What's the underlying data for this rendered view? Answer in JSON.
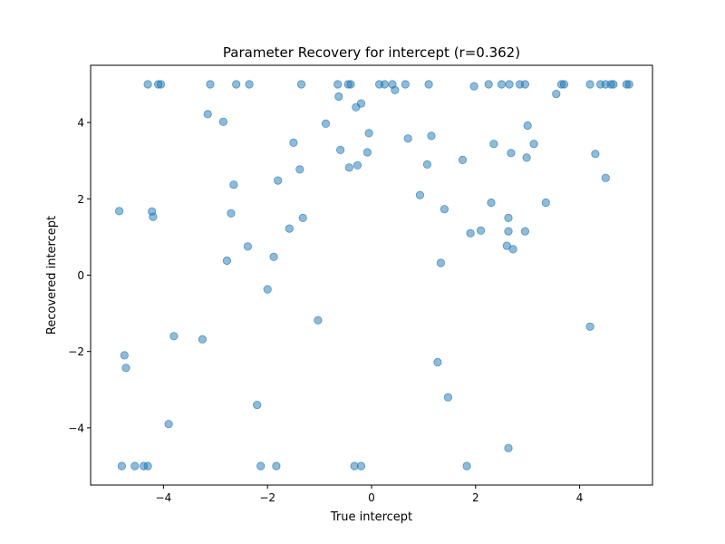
{
  "chart_data": {
    "type": "scatter",
    "title": "Parameter Recovery for intercept (r=0.362)",
    "xlabel": "True intercept",
    "ylabel": "Recovered intercept",
    "xlim": [
      -5.4,
      5.4
    ],
    "ylim": [
      -5.5,
      5.5
    ],
    "xticks": [
      -4,
      -2,
      0,
      2,
      4
    ],
    "yticks": [
      -4,
      -2,
      0,
      2,
      4
    ],
    "grid": false,
    "marker_color": "#1f77b4",
    "marker_alpha": 0.5,
    "points": [
      [
        -4.3,
        5.0
      ],
      [
        -4.1,
        5.0
      ],
      [
        -4.05,
        5.0
      ],
      [
        -3.1,
        5.0
      ],
      [
        -2.6,
        5.0
      ],
      [
        -2.35,
        5.0
      ],
      [
        -1.35,
        5.0
      ],
      [
        -0.65,
        5.0
      ],
      [
        -0.45,
        5.0
      ],
      [
        -0.4,
        5.0
      ],
      [
        0.15,
        5.0
      ],
      [
        0.25,
        5.0
      ],
      [
        0.4,
        5.0
      ],
      [
        0.65,
        5.0
      ],
      [
        1.1,
        5.0
      ],
      [
        2.25,
        5.0
      ],
      [
        2.5,
        5.0
      ],
      [
        2.65,
        5.0
      ],
      [
        2.85,
        5.0
      ],
      [
        2.95,
        5.0
      ],
      [
        3.65,
        5.0
      ],
      [
        3.7,
        5.0
      ],
      [
        4.2,
        5.0
      ],
      [
        4.4,
        5.0
      ],
      [
        4.5,
        5.0
      ],
      [
        4.6,
        5.0
      ],
      [
        4.65,
        5.0
      ],
      [
        4.9,
        5.0
      ],
      [
        4.95,
        5.0
      ],
      [
        1.97,
        4.95
      ],
      [
        0.45,
        4.85
      ],
      [
        3.55,
        4.75
      ],
      [
        -0.63,
        4.68
      ],
      [
        -0.2,
        4.5
      ],
      [
        -0.3,
        4.4
      ],
      [
        -3.15,
        4.22
      ],
      [
        -2.85,
        4.02
      ],
      [
        -0.88,
        3.97
      ],
      [
        3.0,
        3.92
      ],
      [
        -0.05,
        3.72
      ],
      [
        1.15,
        3.65
      ],
      [
        0.7,
        3.58
      ],
      [
        -1.5,
        3.47
      ],
      [
        2.35,
        3.44
      ],
      [
        3.12,
        3.44
      ],
      [
        -0.6,
        3.28
      ],
      [
        -0.08,
        3.22
      ],
      [
        2.68,
        3.2
      ],
      [
        4.3,
        3.18
      ],
      [
        2.98,
        3.08
      ],
      [
        1.75,
        3.02
      ],
      [
        1.07,
        2.9
      ],
      [
        -0.27,
        2.88
      ],
      [
        -0.43,
        2.82
      ],
      [
        -1.38,
        2.77
      ],
      [
        4.5,
        2.55
      ],
      [
        -1.8,
        2.48
      ],
      [
        -2.65,
        2.37
      ],
      [
        0.93,
        2.1
      ],
      [
        2.3,
        1.9
      ],
      [
        3.35,
        1.9
      ],
      [
        1.4,
        1.73
      ],
      [
        -4.85,
        1.68
      ],
      [
        -4.22,
        1.67
      ],
      [
        -2.7,
        1.62
      ],
      [
        -4.2,
        1.53
      ],
      [
        -1.32,
        1.5
      ],
      [
        2.63,
        1.5
      ],
      [
        -1.58,
        1.22
      ],
      [
        2.1,
        1.17
      ],
      [
        2.63,
        1.15
      ],
      [
        2.95,
        1.15
      ],
      [
        1.9,
        1.1
      ],
      [
        2.6,
        0.77
      ],
      [
        -2.38,
        0.75
      ],
      [
        2.72,
        0.68
      ],
      [
        -1.88,
        0.48
      ],
      [
        -2.78,
        0.38
      ],
      [
        1.33,
        0.32
      ],
      [
        -2.0,
        -0.37
      ],
      [
        -1.03,
        -1.18
      ],
      [
        4.2,
        -1.35
      ],
      [
        -3.8,
        -1.6
      ],
      [
        -3.25,
        -1.68
      ],
      [
        -4.75,
        -2.1
      ],
      [
        -4.72,
        -2.43
      ],
      [
        1.27,
        -2.28
      ],
      [
        1.47,
        -3.2
      ],
      [
        -2.2,
        -3.4
      ],
      [
        -3.9,
        -3.9
      ],
      [
        2.63,
        -4.53
      ],
      [
        -4.8,
        -5.0
      ],
      [
        -4.55,
        -5.0
      ],
      [
        -4.38,
        -5.0
      ],
      [
        -4.3,
        -5.0
      ],
      [
        -2.13,
        -5.0
      ],
      [
        -1.83,
        -5.0
      ],
      [
        -0.33,
        -5.0
      ],
      [
        -0.2,
        -5.0
      ],
      [
        1.83,
        -5.0
      ]
    ]
  }
}
